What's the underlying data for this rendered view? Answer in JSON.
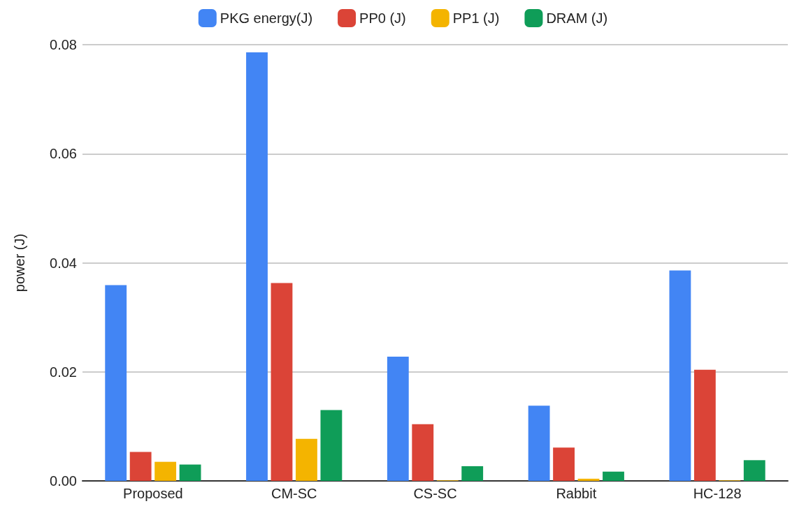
{
  "chart_data": {
    "type": "bar",
    "ylabel": "power (J)",
    "categories": [
      "Proposed",
      "CM-SC",
      "CS-SC",
      "Rabbit",
      "HC-128"
    ],
    "series": [
      {
        "name": "PKG energy(J)",
        "color": "#4285f4",
        "values": [
          0.0359,
          0.0786,
          0.0228,
          0.0138,
          0.0386
        ]
      },
      {
        "name": "PP0 (J)",
        "color": "#db4437",
        "values": [
          0.0053,
          0.0363,
          0.0104,
          0.0061,
          0.0204
        ]
      },
      {
        "name": "PP1 (J)",
        "color": "#f4b400",
        "values": [
          0.0035,
          0.0077,
          0.0001,
          0.0004,
          0.0001
        ]
      },
      {
        "name": "DRAM (J)",
        "color": "#0f9d58",
        "values": [
          0.003,
          0.013,
          0.0027,
          0.0017,
          0.0038
        ]
      }
    ],
    "ylim": [
      0,
      0.08
    ],
    "yticks": [
      {
        "value": 0,
        "label": "0.00"
      },
      {
        "value": 0.02,
        "label": "0.02"
      },
      {
        "value": 0.04,
        "label": "0.04"
      },
      {
        "value": 0.06,
        "label": "0.06"
      },
      {
        "value": 0.08,
        "label": "0.08"
      }
    ],
    "grid": "y",
    "legend": "top"
  }
}
